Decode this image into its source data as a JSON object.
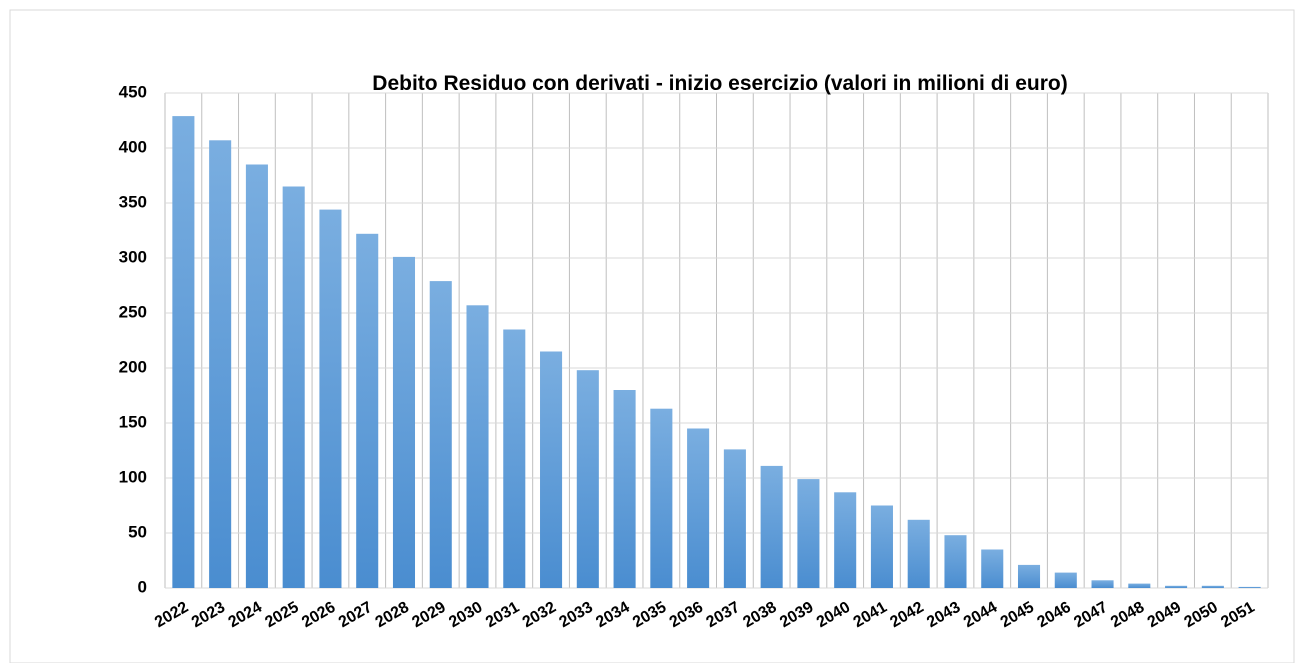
{
  "chart_data": {
    "type": "bar",
    "title": "Debito Residuo con derivati - inizio esercizio (valori in milioni di euro)",
    "categories": [
      "2022",
      "2023",
      "2024",
      "2025",
      "2026",
      "2027",
      "2028",
      "2029",
      "2030",
      "2031",
      "2032",
      "2033",
      "2034",
      "2035",
      "2036",
      "2037",
      "2038",
      "2039",
      "2040",
      "2041",
      "2042",
      "2043",
      "2044",
      "2045",
      "2046",
      "2047",
      "2048",
      "2049",
      "2050",
      "2051"
    ],
    "values": [
      429,
      407,
      385,
      365,
      344,
      322,
      301,
      279,
      257,
      235,
      215,
      198,
      180,
      163,
      145,
      126,
      111,
      99,
      87,
      75,
      62,
      48,
      35,
      21,
      14,
      7,
      4,
      2,
      2,
      1
    ],
    "color": "#5b9bd5",
    "ylim": [
      0,
      450
    ],
    "yticks": [
      0,
      50,
      100,
      150,
      200,
      250,
      300,
      350,
      400,
      450
    ],
    "grid": true
  }
}
